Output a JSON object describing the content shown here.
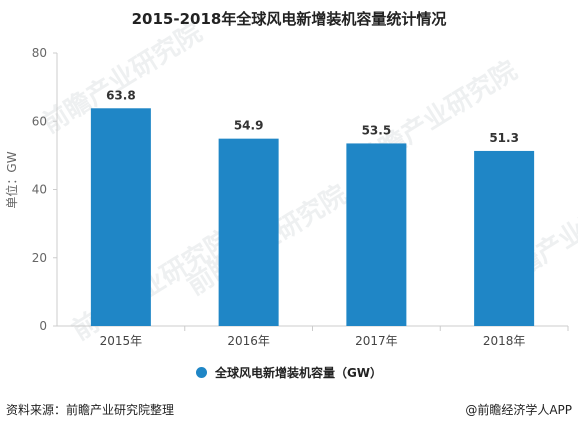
{
  "chart_data": {
    "type": "bar",
    "title": "2015-2018年全球风电新增装机容量统计情况",
    "categories": [
      "2015年",
      "2016年",
      "2017年",
      "2018年"
    ],
    "series": [
      {
        "name": "全球风电新增装机容量（GW）",
        "values": [
          63.8,
          54.9,
          53.5,
          51.3
        ]
      }
    ],
    "ylabel": "单位：GW",
    "ylim": [
      0,
      80
    ],
    "yticks": [
      0,
      20,
      40,
      60,
      80
    ],
    "grid": false,
    "legend_position": "bottom-center",
    "colors": {
      "bar": "#1f86c6",
      "axis": "#cccccc",
      "label": "#333333"
    }
  },
  "footer": {
    "source": "资料来源：前瞻产业研究院整理",
    "credit": "@前瞻经济学人APP"
  },
  "watermark": {
    "brand": "前瞻产业研究院"
  }
}
